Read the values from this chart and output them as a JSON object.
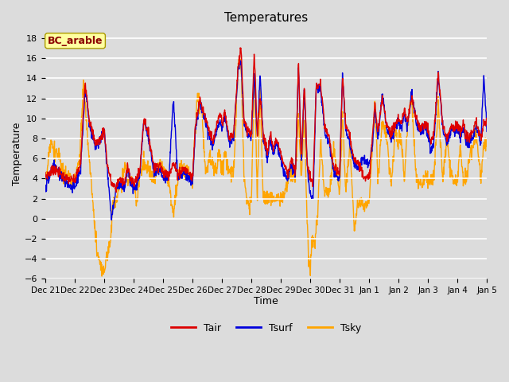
{
  "title": "Temperatures",
  "xlabel": "Time",
  "ylabel": "Temperature",
  "ylim": [
    -6,
    19
  ],
  "yticks": [
    -6,
    -4,
    -2,
    0,
    2,
    4,
    6,
    8,
    10,
    12,
    14,
    16,
    18
  ],
  "bg_color": "#dcdcdc",
  "plot_bg_color": "#dcdcdc",
  "annotation_text": "BC_arable",
  "annotation_color": "#8b0000",
  "annotation_bg": "#ffffa0",
  "line_colors": {
    "Tair": "#dd0000",
    "Tsurf": "#0000dd",
    "Tsky": "#ffa500"
  },
  "line_width": 1.0,
  "tick_labels": [
    "Dec 21",
    "Dec 22",
    "Dec 23",
    "Dec 24",
    "Dec 25",
    "Dec 26",
    "Dec 27",
    "Dec 28",
    "Dec 29",
    "Dec 30",
    "Dec 31",
    "Jan 1",
    "Jan 2",
    "Jan 3",
    "Jan 4",
    "Jan 5"
  ]
}
